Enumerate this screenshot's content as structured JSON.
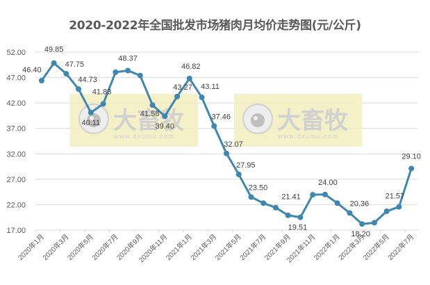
{
  "title": "2020-2022年全国批发市场猪肉月均价走势图(元/公斤)",
  "watermark": {
    "brand_text": "大畜牧",
    "url_text": "www.dxumu.com",
    "background": "#f3eebe"
  },
  "colors": {
    "line": "#3d87b1",
    "line_over_watermark": "#4f8a7a",
    "grid": "#d9d9d9",
    "text": "#595959"
  },
  "chart_data": {
    "type": "line",
    "title": "2020-2022年全国批发市场猪肉月均价走势图(元/公斤)",
    "xlabel": "",
    "ylabel": "元/公斤",
    "ylim": [
      17,
      52
    ],
    "yticks": [
      "52.00",
      "47.00",
      "42.00",
      "37.00",
      "32.00",
      "27.00",
      "22.00",
      "17.00"
    ],
    "grid": "horizontal",
    "legend": "none",
    "x_tick_labels": [
      "2020年1月",
      "2020年3月",
      "2020年5月",
      "2020年7月",
      "2020年9月",
      "2020年11月",
      "2021年1月",
      "2021年3月",
      "2021年5月",
      "2021年7月",
      "2021年9月",
      "2021年11月",
      "2022年1月",
      "2022年3月",
      "2022年5月",
      "2022年7月"
    ],
    "categories": [
      "2020年1月",
      "2020年2月",
      "2020年3月",
      "2020年4月",
      "2020年5月",
      "2020年6月",
      "2020年7月",
      "2020年8月",
      "2020年9月",
      "2020年10月",
      "2020年11月",
      "2020年12月",
      "2021年1月",
      "2021年2月",
      "2021年3月",
      "2021年4月",
      "2021年5月",
      "2021年6月",
      "2021年7月",
      "2021年8月",
      "2021年9月",
      "2021年10月",
      "2021年11月",
      "2021年12月",
      "2022年1月",
      "2022年2月",
      "2022年3月",
      "2022年4月",
      "2022年5月",
      "2022年6月",
      "2022年7月"
    ],
    "series": [
      {
        "name": "猪肉月均价",
        "values": [
          46.4,
          49.85,
          47.75,
          44.73,
          40.11,
          41.83,
          48.05,
          48.37,
          47.4,
          41.58,
          39.4,
          43.27,
          46.82,
          43.11,
          37.46,
          32.07,
          27.95,
          23.5,
          22.3,
          21.41,
          19.9,
          19.51,
          23.95,
          24.0,
          22.3,
          20.36,
          18.2,
          18.45,
          20.7,
          21.57,
          29.1
        ],
        "labels": [
          "46.40",
          "49.85",
          "47.75",
          "44.73",
          "40.11",
          "41.83",
          "",
          "48.37",
          "",
          "41.58",
          "39.40",
          "43.27",
          "46.82",
          "43.11",
          "37.46",
          "32.07",
          "27.95",
          "23.50",
          "",
          "21.41",
          "",
          "19.51",
          "",
          "24.00",
          "",
          "20.36",
          "18.20",
          "",
          "",
          "21.57",
          "29.10"
        ]
      }
    ]
  }
}
